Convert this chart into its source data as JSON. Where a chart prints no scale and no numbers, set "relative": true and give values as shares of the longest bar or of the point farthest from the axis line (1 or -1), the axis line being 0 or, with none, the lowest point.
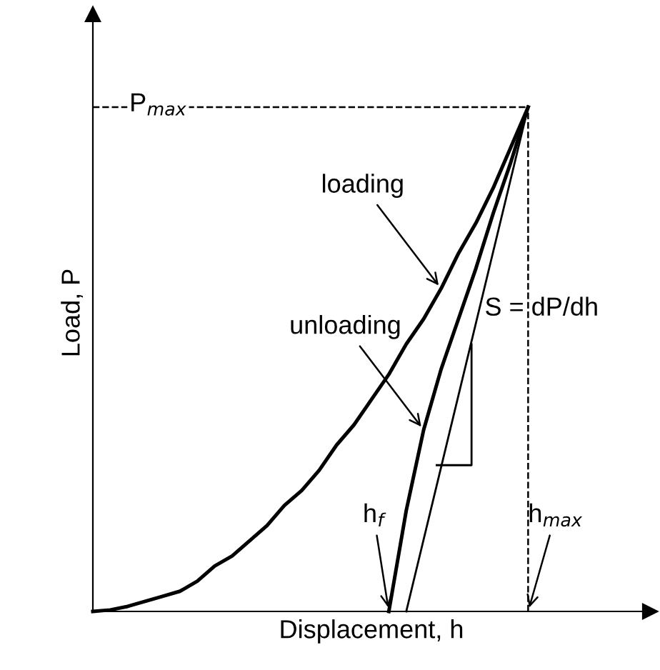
{
  "chart_data": {
    "type": "line",
    "relative": true,
    "xlabel": "Displacement, h",
    "ylabel": "Load, P",
    "legend": false,
    "marker": "none",
    "categories": [
      null,
      null,
      null,
      null,
      null,
      null,
      null,
      null,
      null,
      null,
      null,
      null,
      null,
      null,
      null,
      null,
      null,
      null,
      null,
      null,
      null,
      null,
      null,
      null,
      null,
      null
    ],
    "series": [
      {
        "values": [
          0,
          0.003,
          0.01,
          0.02,
          0.03,
          0.04,
          0.06,
          0.09,
          0.11,
          0.14,
          0.17,
          0.21,
          0.24,
          0.28,
          0.33,
          0.37,
          0.42,
          0.47,
          0.53,
          0.58,
          0.64,
          0.71,
          0.77,
          0.84,
          0.92,
          1.0
        ],
        "color": "#000000",
        "line_style": "solid"
      },
      {
        "values": [
          null,
          null,
          null,
          null,
          null,
          null,
          null,
          null,
          null,
          null,
          null,
          null,
          null,
          null,
          null,
          null,
          null,
          0,
          0.2,
          0.36,
          0.48,
          0.58,
          0.68,
          0.79,
          0.89,
          1.0
        ],
        "color": "#000000",
        "line_style": "solid"
      },
      {
        "values": [
          null,
          null,
          null,
          null,
          null,
          null,
          null,
          null,
          null,
          null,
          null,
          null,
          null,
          null,
          null,
          null,
          null,
          null,
          0,
          null,
          null,
          null,
          null,
          null,
          null,
          1.0
        ],
        "color": "#000000",
        "line_style": "solid"
      }
    ],
    "ref_lines": [
      {
        "axis": "y",
        "value": 1.0,
        "label": "P$_{max}$",
        "line_style": "dashed",
        "color": "#000000"
      }
    ],
    "annotations": [
      "loading",
      "unloading",
      "h$_{f}$",
      "h$_{max}$",
      "S = dP/dh"
    ]
  }
}
